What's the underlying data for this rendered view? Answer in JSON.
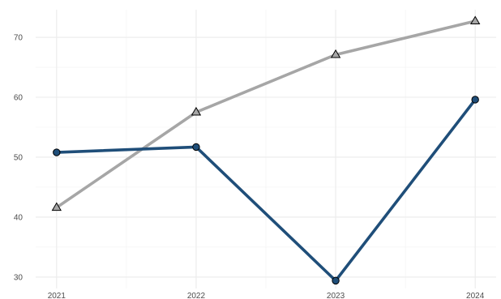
{
  "chart_data": {
    "type": "line",
    "title": "",
    "xlabel": "",
    "ylabel": "",
    "x": [
      2021,
      2022,
      2023,
      2024
    ],
    "x_tick_labels": [
      "2021",
      "2022",
      "2023",
      "2024"
    ],
    "y_tick_labels": [
      "30",
      "40",
      "50",
      "60",
      "70"
    ],
    "y_ticks": [
      30,
      40,
      50,
      60,
      70
    ],
    "xlim": [
      2020.85,
      2024.15
    ],
    "ylim": [
      28.1,
      74.6
    ],
    "grid": true,
    "legend": "none",
    "series": [
      {
        "values": [
          50.8,
          51.7,
          29.4,
          59.6
        ],
        "color": "#1f4e79",
        "marker": "circle"
      },
      {
        "values": [
          41.6,
          57.5,
          67.1,
          72.7
        ],
        "color": "#a6a6a6",
        "marker": "triangle"
      }
    ]
  }
}
